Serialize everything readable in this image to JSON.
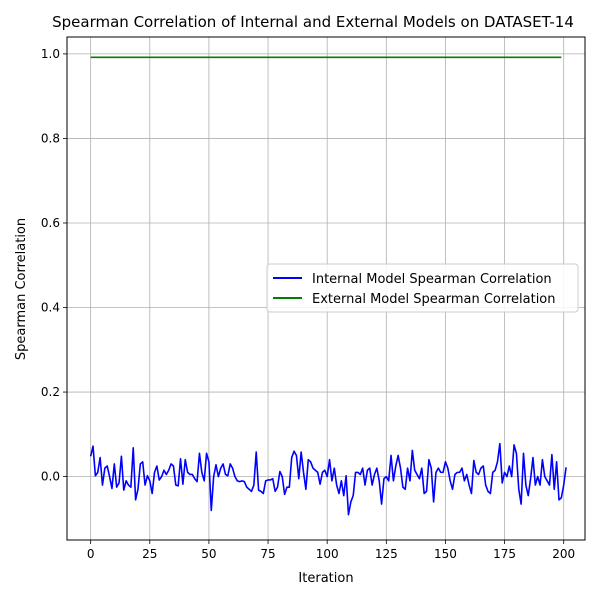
{
  "chart_data": {
    "type": "line",
    "title": "Spearman Correlation of Internal and External Models on DATASET-14",
    "xlabel": "Iteration",
    "ylabel": "Spearman Correlation",
    "xlim": [
      -10,
      209
    ],
    "ylim": [
      -0.15,
      1.04
    ],
    "xticks": [
      0,
      25,
      50,
      75,
      100,
      125,
      150,
      175,
      200
    ],
    "yticks": [
      0.0,
      0.2,
      0.4,
      0.6,
      0.8,
      1.0
    ],
    "xtick_labels": [
      "0",
      "25",
      "50",
      "75",
      "100",
      "125",
      "150",
      "175",
      "200"
    ],
    "ytick_labels": [
      "0.0",
      "0.2",
      "0.4",
      "0.6",
      "0.8",
      "1.0"
    ],
    "grid": true,
    "legend_position": "center-right",
    "series": [
      {
        "name": "Internal Model Spearman Correlation",
        "color": "#0000ff",
        "x_start": 0,
        "x_step": 1,
        "values": [
          0.048,
          0.072,
          0.002,
          0.01,
          0.045,
          -0.02,
          0.02,
          0.025,
          0.0,
          -0.028,
          0.03,
          -0.025,
          -0.015,
          0.048,
          -0.032,
          -0.01,
          -0.02,
          -0.025,
          0.068,
          -0.055,
          -0.03,
          0.03,
          0.035,
          -0.02,
          0.002,
          -0.01,
          -0.04,
          0.01,
          0.025,
          -0.008,
          0.0,
          0.015,
          0.005,
          0.015,
          0.03,
          0.025,
          -0.02,
          -0.022,
          0.042,
          -0.018,
          0.04,
          0.01,
          0.005,
          0.005,
          -0.005,
          -0.012,
          0.055,
          0.01,
          -0.01,
          0.055,
          0.035,
          -0.08,
          0.0,
          0.028,
          0.0,
          0.02,
          0.03,
          0.005,
          0.002,
          0.03,
          0.02,
          0.0,
          -0.01,
          -0.012,
          -0.01,
          -0.012,
          -0.025,
          -0.03,
          -0.035,
          -0.02,
          0.058,
          -0.032,
          -0.035,
          -0.04,
          -0.01,
          -0.008,
          -0.008,
          -0.005,
          -0.035,
          -0.025,
          0.012,
          0.0,
          -0.042,
          -0.025,
          -0.025,
          0.045,
          0.06,
          0.05,
          -0.005,
          0.058,
          0.01,
          -0.03,
          0.04,
          0.035,
          0.02,
          0.015,
          0.01,
          -0.018,
          0.01,
          0.015,
          0.0,
          0.04,
          -0.01,
          0.02,
          -0.02,
          -0.04,
          -0.01,
          -0.045,
          0.002,
          -0.09,
          -0.06,
          -0.045,
          0.01,
          0.01,
          0.005,
          0.02,
          -0.02,
          0.015,
          0.02,
          -0.02,
          0.005,
          0.02,
          -0.01,
          -0.065,
          -0.005,
          0.0,
          -0.01,
          0.05,
          -0.01,
          0.025,
          0.05,
          0.02,
          -0.025,
          -0.03,
          0.02,
          -0.01,
          0.062,
          0.015,
          0.005,
          -0.005,
          0.02,
          -0.04,
          -0.035,
          0.04,
          0.02,
          -0.06,
          0.01,
          0.02,
          0.01,
          0.01,
          0.035,
          0.02,
          -0.01,
          -0.03,
          0.005,
          0.01,
          0.01,
          0.02,
          -0.01,
          0.005,
          -0.02,
          -0.04,
          0.038,
          0.01,
          0.005,
          0.02,
          0.025,
          -0.02,
          -0.035,
          -0.04,
          0.01,
          0.015,
          0.035,
          0.078,
          -0.015,
          0.01,
          0.0,
          0.025,
          0.0,
          0.075,
          0.055,
          -0.03,
          -0.065,
          0.055,
          -0.02,
          -0.045,
          -0.005,
          0.045,
          -0.02,
          0.0,
          -0.02,
          0.04,
          0.0,
          -0.01,
          -0.02,
          0.052,
          -0.03,
          0.035,
          -0.055,
          -0.05,
          -0.02,
          0.022
        ]
      },
      {
        "name": "External Model Spearman Correlation",
        "color": "#008000",
        "x": [
          0,
          199
        ],
        "values": [
          0.992,
          0.992
        ]
      }
    ]
  }
}
